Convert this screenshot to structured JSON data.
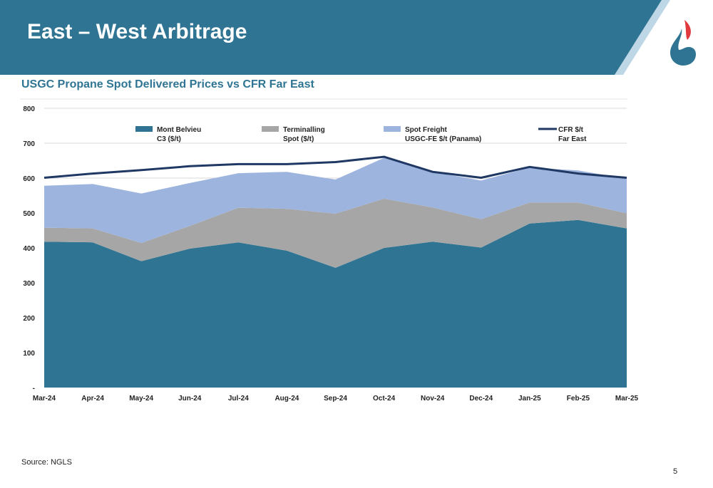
{
  "slide": {
    "title": "East – West Arbitrage",
    "subtitle": "USGC Propane Spot Delivered Prices vs CFR Far East",
    "source": "Source: NGLS",
    "page_number": "5",
    "brand_color": "#2F7593",
    "logo_icon": "flame-drop-logo-icon"
  },
  "chart_data": {
    "type": "area",
    "stacked": true,
    "categories": [
      "Mar-24",
      "Apr-24",
      "May-24",
      "Jun-24",
      "Jul-24",
      "Aug-24",
      "Sep-24",
      "Oct-24",
      "Nov-24",
      "Dec-24",
      "Jan-25",
      "Feb-25",
      "Mar-25"
    ],
    "ylim": [
      0,
      800
    ],
    "yticks": [
      0,
      100,
      200,
      300,
      400,
      500,
      600,
      700,
      800
    ],
    "ytick_labels": [
      "-",
      "100",
      "200",
      "300",
      "400",
      "500",
      "600",
      "700",
      "800"
    ],
    "grid": true,
    "legend_position": "top",
    "area_series": [
      {
        "name": "Mont Belvieu C3 ($/t)",
        "legend_lines": [
          "Mont Belvieu",
          "C3 ($/t)"
        ],
        "color": "#2F7593",
        "values": [
          418,
          416,
          362,
          398,
          416,
          392,
          343,
          400,
          418,
          401,
          470,
          480,
          456
        ]
      },
      {
        "name": "Terminalling Spot ($/t)",
        "legend_lines": [
          "Terminalling",
          "Spot ($/t)"
        ],
        "color": "#A6A6A6",
        "values": [
          40,
          40,
          52,
          65,
          99,
          120,
          155,
          141,
          98,
          81,
          60,
          50,
          43
        ]
      },
      {
        "name": "Spot Freight USGC-FE $/t (Panama)",
        "legend_lines": [
          "Spot Freight",
          "USGC-FE $/t (Panama)"
        ],
        "color": "#9DB4DE",
        "values": [
          120,
          127,
          142,
          123,
          99,
          106,
          98,
          117,
          102,
          111,
          100,
          92,
          99
        ]
      }
    ],
    "line_series": [
      {
        "name": "CFR $/t Far East",
        "legend_lines": [
          "CFR $/t",
          "Far East"
        ],
        "color": "#1F3864",
        "values": [
          601,
          613,
          623,
          634,
          640,
          640,
          646,
          661,
          618,
          601,
          632,
          613,
          601
        ]
      }
    ]
  }
}
